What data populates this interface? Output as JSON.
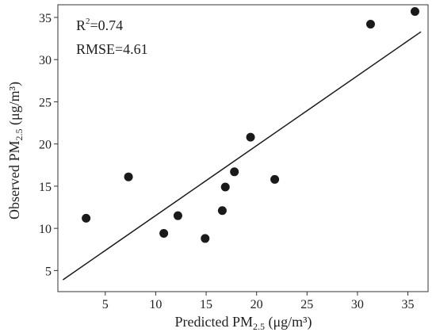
{
  "chart_data": {
    "type": "scatter",
    "xlabel": {
      "prefix": "Predicted PM",
      "sub": "2.5",
      "suffix": " (μg/m³)"
    },
    "ylabel": {
      "prefix": "Observed PM",
      "sub": "2.5",
      "suffix": " (μg/m³)"
    },
    "xlim": [
      0.3,
      37
    ],
    "ylim": [
      2.5,
      36.5
    ],
    "xticks": [
      5,
      10,
      15,
      20,
      25,
      30,
      35
    ],
    "yticks": [
      5,
      10,
      15,
      20,
      25,
      30,
      35
    ],
    "grid": false,
    "annotations": {
      "r2": {
        "prefix": "R",
        "sup": "2",
        "suffix": "=0.74"
      },
      "rmse": "RMSE=4.61"
    },
    "points": [
      {
        "x": 3.1,
        "y": 11.2
      },
      {
        "x": 7.3,
        "y": 16.1
      },
      {
        "x": 10.8,
        "y": 9.4
      },
      {
        "x": 12.2,
        "y": 11.5
      },
      {
        "x": 14.9,
        "y": 8.8
      },
      {
        "x": 16.6,
        "y": 12.1
      },
      {
        "x": 16.9,
        "y": 14.9
      },
      {
        "x": 17.8,
        "y": 16.7
      },
      {
        "x": 19.4,
        "y": 20.8
      },
      {
        "x": 21.8,
        "y": 15.8
      },
      {
        "x": 31.3,
        "y": 34.2
      },
      {
        "x": 35.7,
        "y": 35.7
      }
    ],
    "fit_line": {
      "x": [
        0.8,
        36.3
      ],
      "y": [
        3.9,
        33.3
      ]
    },
    "colors": {
      "point": "#1a1a1a",
      "line": "#1a1a1a",
      "axis": "#333333"
    }
  }
}
